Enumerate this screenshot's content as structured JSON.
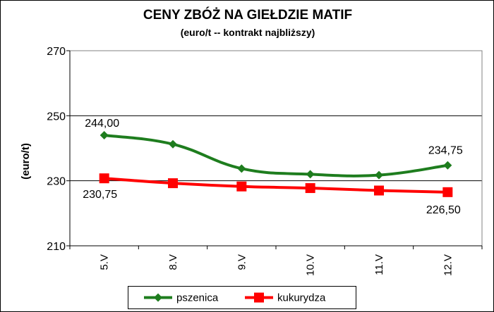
{
  "chart_data": {
    "type": "line",
    "title": "CENY ZBÓŻ NA GIEŁDZIE MATIF",
    "subtitle": "(euro/t -- kontrakt najbliższy)",
    "xlabel": "",
    "ylabel": "(euro/t)",
    "categories": [
      "5.V",
      "8.V",
      "9.V",
      "10.V",
      "11.V",
      "12.V"
    ],
    "ylim": [
      210,
      270
    ],
    "yticks": [
      "210",
      "230",
      "250",
      "270"
    ],
    "grid": true,
    "legend_position": "bottom",
    "series": [
      {
        "name": "pszenica",
        "color": "#1e7d1e",
        "marker": "diamond",
        "values": [
          244.0,
          241.25,
          233.75,
          232.0,
          231.75,
          234.75
        ],
        "labels": [
          "244,00",
          "",
          "",
          "",
          "",
          "234,75"
        ]
      },
      {
        "name": "kukurydza",
        "color": "#ff0000",
        "marker": "square",
        "values": [
          230.75,
          229.25,
          228.25,
          227.75,
          227.0,
          226.5
        ],
        "labels": [
          "230,75",
          "",
          "",
          "",
          "",
          "226,50"
        ]
      }
    ]
  }
}
